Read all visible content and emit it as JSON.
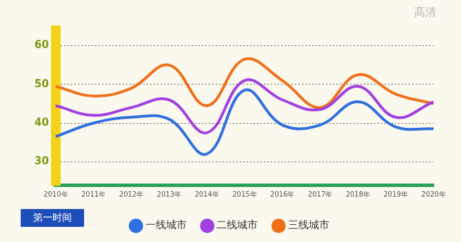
{
  "chart_data": {
    "type": "line",
    "categories": [
      "2010年",
      "2011年",
      "2012年",
      "2013年",
      "2014年",
      "2015年",
      "2016年",
      "2017年",
      "2018年",
      "2019年",
      "2020年"
    ],
    "series": [
      {
        "name": "一线城市",
        "color": "#2f6fe0",
        "values": [
          36.5,
          40,
          41.5,
          41,
          32,
          48.5,
          39.5,
          39.5,
          45.5,
          39,
          38.5
        ]
      },
      {
        "name": "二线城市",
        "color": "#a040e0",
        "values": [
          44.5,
          42,
          44,
          46,
          37.5,
          51,
          46,
          43.5,
          49.5,
          41.5,
          45.5
        ]
      },
      {
        "name": "三线城市",
        "color": "#f0701a",
        "values": [
          49.5,
          47,
          49,
          55,
          44.5,
          56.5,
          51,
          44,
          52.5,
          47.5,
          45
        ]
      }
    ],
    "ylim": [
      24,
      64
    ],
    "yticks": [
      30,
      40,
      50,
      60
    ],
    "grid": true,
    "legend": "bottom",
    "annotations": [
      "第一时间",
      "高清"
    ]
  }
}
